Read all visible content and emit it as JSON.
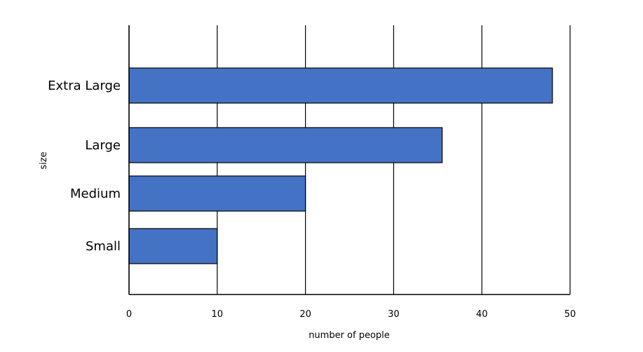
{
  "chart_data": {
    "type": "bar",
    "orientation": "horizontal",
    "categories": [
      "Extra Large",
      "Large",
      "Medium",
      "Small"
    ],
    "values": [
      48,
      35.5,
      20,
      10
    ],
    "xlabel": "number of people",
    "ylabel": "size",
    "xlim": [
      0,
      50
    ],
    "xticks": [
      "0",
      "10",
      "20",
      "30",
      "40",
      "50"
    ],
    "grid": "vertical",
    "legend": "none",
    "bar_color": "#4472C4",
    "bar_edge_color": "#000000"
  }
}
